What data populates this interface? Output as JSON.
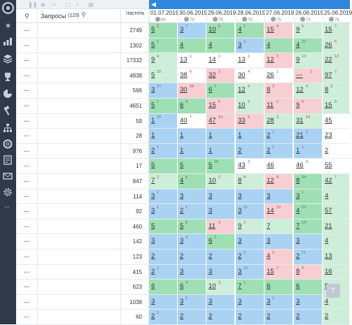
{
  "header": {
    "queries_label": "Запросы",
    "queries_count": "(123)",
    "freq_label": "Частота"
  },
  "dates": [
    {
      "date": "01.07.2019",
      "count": "80"
    },
    {
      "date": "30.06.2019",
      "count": "79"
    },
    {
      "date": "29.06.2019",
      "count": "78"
    },
    {
      "date": "28.06.2019",
      "count": "76"
    },
    {
      "date": "27.06.2019",
      "count": "75"
    },
    {
      "date": "26.06.2019",
      "count": "73"
    },
    {
      "date": "25.06.2019",
      "count": "76"
    }
  ],
  "dash": "---",
  "rows": [
    {
      "freq": "2749",
      "cells": [
        [
          "5",
          "2",
          "dn",
          "g"
        ],
        [
          "3",
          "7",
          "up",
          "b"
        ],
        [
          "10",
          "6",
          "dn",
          "g"
        ],
        [
          "4",
          "1",
          "dn",
          "g"
        ],
        [
          "15",
          "4",
          "dn",
          "r"
        ],
        [
          "9",
          "5",
          "dn",
          "lg"
        ],
        [
          "15",
          "7",
          "up",
          "lg"
        ]
      ]
    },
    {
      "freq": "1302",
      "cells": [
        [
          "5",
          "1",
          "up",
          "g"
        ],
        [
          "4",
          "",
          null,
          "g"
        ],
        [
          "4",
          "",
          null,
          "g"
        ],
        [
          "3",
          "1",
          "dn",
          "b"
        ],
        [
          "4",
          "",
          null,
          "g"
        ],
        [
          "4",
          "22",
          "up",
          "g"
        ],
        [
          "26",
          "5",
          "dn",
          "lg"
        ]
      ]
    },
    {
      "freq": "17332",
      "cells": [
        [
          "9",
          "4",
          "up",
          "lg"
        ],
        [
          "13",
          "1",
          "dn",
          "w"
        ],
        [
          "14",
          "1",
          "dn",
          "w"
        ],
        [
          "13",
          "1",
          "dn",
          "w"
        ],
        [
          "12",
          "3",
          "dn",
          "r"
        ],
        [
          "9",
          "13",
          "up",
          "lg"
        ],
        [
          "22",
          "13",
          "dn",
          "lg"
        ]
      ]
    },
    {
      "freq": "4938",
      "cells": [
        [
          "5",
          "33",
          "up",
          "lg"
        ],
        [
          "38",
          "6",
          "dn",
          "w"
        ],
        [
          "32",
          "2",
          "dn",
          "r"
        ],
        [
          "30",
          "4",
          "dn",
          "w"
        ],
        [
          "26",
          "1",
          "up",
          "w"
        ],
        [
          "---",
          "1",
          "dn",
          "r"
        ],
        [
          "97",
          "7",
          "dn",
          "lg"
        ]
      ]
    },
    {
      "freq": "566",
      "cells": [
        [
          "3",
          "27",
          "up",
          "b"
        ],
        [
          "30",
          "24",
          "dn",
          "r"
        ],
        [
          "6",
          "6",
          "up",
          "g"
        ],
        [
          "12",
          "4",
          "dn",
          "lg"
        ],
        [
          "8",
          "3",
          "dn",
          "r"
        ],
        [
          "12",
          "4",
          "dn",
          "lg"
        ],
        [
          "8",
          "3",
          "dn",
          "lg"
        ]
      ]
    },
    {
      "freq": "4651",
      "cells": [
        [
          "5",
          "1",
          "up",
          "g"
        ],
        [
          "6",
          "9",
          "dn",
          "g"
        ],
        [
          "15",
          "5",
          "dn",
          "r"
        ],
        [
          "10",
          "1",
          "dn",
          "lg"
        ],
        [
          "11",
          "2",
          "dn",
          "r"
        ],
        [
          "9",
          "6",
          "dn",
          "r"
        ],
        [
          "15",
          "8",
          "up",
          "lg"
        ]
      ]
    },
    {
      "freq": "59",
      "cells": [
        [
          "1",
          "39",
          "up",
          "b"
        ],
        [
          "40",
          "7",
          "dn",
          "w"
        ],
        [
          "47",
          "14",
          "dn",
          "r"
        ],
        [
          "33",
          "5",
          "dn",
          "r"
        ],
        [
          "28",
          "3",
          "dn",
          "lg"
        ],
        [
          "31",
          "14",
          "dn",
          "lg"
        ],
        [
          "45",
          "",
          null,
          "w"
        ]
      ]
    },
    {
      "freq": "28",
      "cells": [
        [
          "1",
          "",
          null,
          "b"
        ],
        [
          "1",
          "",
          null,
          "b"
        ],
        [
          "1",
          "",
          null,
          "b"
        ],
        [
          "1",
          "",
          null,
          "b"
        ],
        [
          "2",
          "1",
          "up",
          "b"
        ],
        [
          "21",
          "1",
          "dn",
          "b"
        ],
        [
          "23",
          "",
          null,
          "w"
        ]
      ]
    },
    {
      "freq": "976",
      "cells": [
        [
          "2",
          "1",
          "dn",
          "b"
        ],
        [
          "1",
          "",
          null,
          "b"
        ],
        [
          "1",
          "",
          null,
          "b"
        ],
        [
          "2",
          "",
          null,
          "b"
        ],
        [
          "2",
          "1",
          "dn",
          "b"
        ],
        [
          "1",
          "1",
          "dn",
          "b"
        ],
        [
          "2",
          "",
          null,
          "w"
        ]
      ]
    },
    {
      "freq": "17",
      "cells": [
        [
          "5",
          "",
          null,
          "g"
        ],
        [
          "5",
          "",
          null,
          "g"
        ],
        [
          "5",
          "38",
          "up",
          "g"
        ],
        [
          "43",
          "3",
          "dn",
          "w"
        ],
        [
          "46",
          "",
          null,
          "w"
        ],
        [
          "46",
          "9",
          "up",
          "w"
        ],
        [
          "55",
          "",
          null,
          "w"
        ]
      ]
    },
    {
      "freq": "847",
      "cells": [
        [
          "7",
          "2",
          "dn",
          "lg"
        ],
        [
          "4",
          "6",
          "dn",
          "g"
        ],
        [
          "10",
          "2",
          "dn",
          "lg"
        ],
        [
          "8",
          "4",
          "dn",
          "lg"
        ],
        [
          "12",
          "4",
          "dn",
          "r"
        ],
        [
          "8",
          "34",
          "up",
          "g"
        ],
        [
          "42",
          "7",
          "up",
          "lg"
        ]
      ]
    },
    {
      "freq": "114",
      "cells": [
        [
          "3",
          "1",
          "up",
          "b"
        ],
        [
          "3",
          "",
          null,
          "b"
        ],
        [
          "3",
          "",
          null,
          "b"
        ],
        [
          "3",
          "",
          null,
          "b"
        ],
        [
          "3",
          "",
          null,
          "b"
        ],
        [
          "3",
          "1",
          "dn",
          "g"
        ],
        [
          "4",
          "",
          null,
          "lg"
        ]
      ]
    },
    {
      "freq": "92",
      "cells": [
        [
          "3",
          "1",
          "dn",
          "b"
        ],
        [
          "2",
          "1",
          "dn",
          "b"
        ],
        [
          "3",
          "",
          null,
          "b"
        ],
        [
          "3",
          "11",
          "up",
          "b"
        ],
        [
          "14",
          "10",
          "dn",
          "r"
        ],
        [
          "4",
          "53",
          "up",
          "g"
        ],
        [
          "57",
          "",
          null,
          "lg"
        ]
      ]
    },
    {
      "freq": "460",
      "cells": [
        [
          "5",
          "",
          null,
          "g"
        ],
        [
          "5",
          "6",
          "dn",
          "g"
        ],
        [
          "11",
          "2",
          "dn",
          "r"
        ],
        [
          "9",
          "2",
          "dn",
          "lg"
        ],
        [
          "7",
          "",
          null,
          "lg"
        ],
        [
          "7",
          "14",
          "up",
          "g"
        ],
        [
          "21",
          "",
          null,
          "lg"
        ]
      ]
    },
    {
      "freq": "142",
      "cells": [
        [
          "3",
          "",
          null,
          "b"
        ],
        [
          "3",
          "3",
          "dn",
          "b"
        ],
        [
          "6",
          "3",
          "up",
          "g"
        ],
        [
          "3",
          "",
          null,
          "b"
        ],
        [
          "3",
          "",
          null,
          "b"
        ],
        [
          "3",
          "",
          null,
          "b"
        ],
        [
          "4",
          "",
          null,
          "lg"
        ]
      ]
    },
    {
      "freq": "123",
      "cells": [
        [
          "2",
          "",
          null,
          "b"
        ],
        [
          "2",
          "",
          null,
          "b"
        ],
        [
          "2",
          "",
          null,
          "b"
        ],
        [
          "2",
          "2",
          "up",
          "b"
        ],
        [
          "4",
          "2",
          "dn",
          "r"
        ],
        [
          "2",
          "11",
          "up",
          "b"
        ],
        [
          "13",
          "",
          null,
          "lg"
        ]
      ]
    },
    {
      "freq": "415",
      "cells": [
        [
          "2",
          "1",
          "up",
          "b"
        ],
        [
          "3",
          "",
          null,
          "b"
        ],
        [
          "3",
          "",
          null,
          "b"
        ],
        [
          "3",
          "12",
          "up",
          "b"
        ],
        [
          "15",
          "7",
          "dn",
          "r"
        ],
        [
          "8",
          "8",
          "up",
          "r"
        ],
        [
          "16",
          "",
          null,
          "lg"
        ]
      ]
    },
    {
      "freq": "623",
      "cells": [
        [
          "6",
          "",
          null,
          "g"
        ],
        [
          "6",
          "4",
          "dn",
          "g"
        ],
        [
          "10",
          "3",
          "dn",
          "lg"
        ],
        [
          "7",
          "1",
          "up",
          "g"
        ],
        [
          "6",
          "",
          null,
          "g"
        ],
        [
          "6",
          "",
          null,
          "g"
        ],
        [
          "5",
          "",
          null,
          "lg"
        ]
      ]
    },
    {
      "freq": "1038",
      "cells": [
        [
          "3",
          "",
          null,
          "b"
        ],
        [
          "3",
          "1",
          "dn",
          "b"
        ],
        [
          "3",
          "",
          null,
          "b"
        ],
        [
          "3",
          "",
          null,
          "b"
        ],
        [
          "3",
          "1",
          "dn",
          "b"
        ],
        [
          "3",
          "",
          null,
          "b"
        ],
        [
          "4",
          "",
          null,
          "lg"
        ]
      ]
    },
    {
      "freq": "60",
      "cells": [
        [
          "2",
          "1",
          "dn",
          "b"
        ],
        [
          "2",
          "",
          null,
          "b"
        ],
        [
          "2",
          "",
          null,
          "b"
        ],
        [
          "2",
          "",
          null,
          "b"
        ],
        [
          "2",
          "",
          null,
          "b"
        ],
        [
          "2",
          "",
          null,
          "b"
        ],
        [
          "2",
          "",
          null,
          "lg"
        ]
      ]
    }
  ]
}
